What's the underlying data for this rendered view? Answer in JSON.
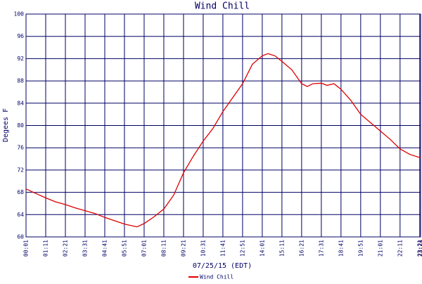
{
  "chart_data": {
    "type": "line",
    "title": "Wind Chill",
    "x_label": "07/25/15 (EDT)",
    "y_label": "Degees F",
    "x": [
      "00:01",
      "00:36",
      "01:11",
      "01:46",
      "02:21",
      "02:56",
      "03:31",
      "04:06",
      "04:41",
      "05:16",
      "05:51",
      "06:26",
      "06:36",
      "07:01",
      "07:36",
      "08:11",
      "08:46",
      "09:21",
      "09:56",
      "10:31",
      "11:06",
      "11:41",
      "12:16",
      "12:51",
      "13:26",
      "14:01",
      "14:21",
      "14:46",
      "15:11",
      "15:46",
      "16:21",
      "16:41",
      "17:01",
      "17:31",
      "17:51",
      "18:16",
      "18:41",
      "19:16",
      "19:51",
      "20:26",
      "21:01",
      "21:36",
      "22:11",
      "22:46",
      "23:24"
    ],
    "series": [
      {
        "name": "Wind Chill",
        "color": "#dd0000",
        "values": [
          68.6,
          67.8,
          67.0,
          66.3,
          65.8,
          65.2,
          64.7,
          64.2,
          63.5,
          62.9,
          62.3,
          61.9,
          61.8,
          62.4,
          63.6,
          65.0,
          67.5,
          71.5,
          74.5,
          77.2,
          79.5,
          82.5,
          85.0,
          87.5,
          91.0,
          92.5,
          92.9,
          92.5,
          91.5,
          90.0,
          87.5,
          87.0,
          87.5,
          87.6,
          87.2,
          87.5,
          86.5,
          84.5,
          82.0,
          80.5,
          79.0,
          77.5,
          75.8,
          74.8,
          74.2
        ]
      }
    ],
    "xlim": [
      "00:01",
      "23:24"
    ],
    "xticks": [
      "00:01",
      "01:11",
      "02:21",
      "03:31",
      "04:41",
      "05:51",
      "07:01",
      "08:11",
      "09:21",
      "10:31",
      "11:41",
      "12:51",
      "14:01",
      "15:11",
      "16:21",
      "17:31",
      "18:41",
      "19:51",
      "21:01",
      "22:11",
      "23:21",
      "23:24"
    ],
    "ylim": [
      60,
      100
    ],
    "yticks": [
      60,
      64,
      68,
      72,
      76,
      80,
      84,
      88,
      92,
      96,
      100
    ],
    "grid": true,
    "grid_color": "#000066",
    "legend": "bottom"
  }
}
